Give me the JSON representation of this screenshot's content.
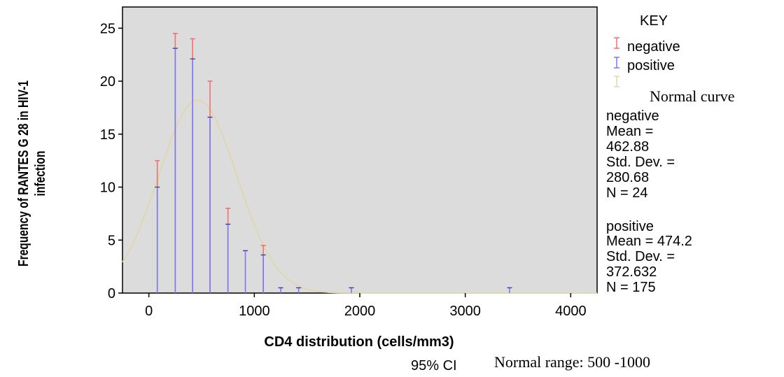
{
  "chart_data": {
    "type": "bar",
    "xlabel": "CD4 distribution (cells/mm3)",
    "ylabel_line1": "Frequency of RANTES G 28 in HIV-1",
    "ylabel_line2": "infection",
    "xlim": [
      -250,
      4250
    ],
    "ylim": [
      0,
      27
    ],
    "x_ticks": [
      0,
      1000,
      2000,
      3000,
      4000
    ],
    "y_ticks": [
      0,
      5,
      10,
      15,
      20,
      25
    ],
    "grid": false,
    "plot_background": "#dcdcdc",
    "x": [
      80,
      250,
      415,
      580,
      750,
      915,
      1085,
      1250,
      1420,
      1920,
      3420
    ],
    "series": [
      {
        "name": "negative",
        "color": "#f07070",
        "values": [
          12.5,
          24.5,
          24.0,
          20.0,
          8.0,
          0,
          4.5,
          0,
          0,
          0,
          0
        ]
      },
      {
        "name": "positive",
        "color": "#7878f0",
        "values": [
          10.0,
          23.1,
          22.1,
          16.6,
          6.5,
          4.0,
          3.6,
          0.5,
          0.5,
          0.5,
          0.5
        ]
      }
    ],
    "normal_curve": {
      "label": "Normal curve",
      "color": "#ded7b0",
      "mean": 462.88,
      "sd": 372.632,
      "peak": 18.2
    },
    "legend_title": "KEY",
    "legend_placement": "right",
    "stats": [
      {
        "group": "negative",
        "lines": [
          "Mean =",
          "462.88",
          "Std. Dev. =",
          "280.68",
          "N = 24"
        ]
      },
      {
        "group": "positive",
        "lines": [
          "Mean = 474.2",
          "Std. Dev. =",
          "372.632",
          "N = 175"
        ]
      }
    ],
    "footer_ci": "95% CI",
    "footer_range": "Normal range: 500 -1000"
  }
}
